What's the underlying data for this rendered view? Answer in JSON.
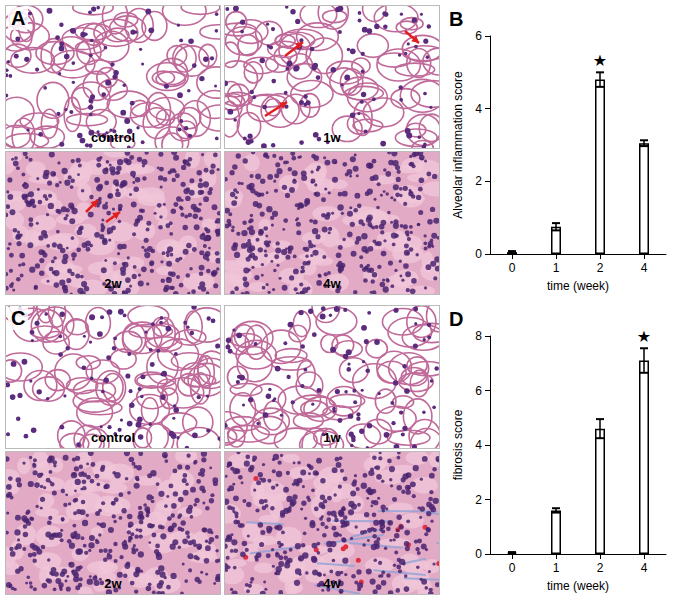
{
  "panels": [
    {
      "label": "A",
      "images": [
        "control",
        "1w",
        "2w",
        "4w"
      ]
    },
    {
      "label": "C",
      "images": [
        "control",
        "1w",
        "2w",
        "4w"
      ]
    }
  ],
  "chart_data": [
    {
      "panel": "B",
      "type": "bar",
      "ylabel": "Alveolar inflammation score",
      "xlabel": "time (week)",
      "categories": [
        "0",
        "1",
        "2",
        "4"
      ],
      "values": [
        0.05,
        0.75,
        4.8,
        3.05
      ],
      "errors": [
        0.03,
        0.1,
        0.2,
        0.08
      ],
      "color": "#ffffff",
      "ylim": [
        0,
        6
      ],
      "yticks": [
        0,
        2,
        4,
        6
      ],
      "grid": false,
      "annotations": [
        {
          "category": "2",
          "text": "★"
        }
      ]
    },
    {
      "panel": "D",
      "type": "bar",
      "ylabel": "fibrosis score",
      "xlabel": "time (week)",
      "categories": [
        "0",
        "1",
        "2",
        "4"
      ],
      "values": [
        0.05,
        1.6,
        4.6,
        7.1
      ],
      "errors": [
        0.02,
        0.08,
        0.35,
        0.45
      ],
      "color": "#ffffff",
      "ylim": [
        0,
        8
      ],
      "yticks": [
        0,
        2,
        4,
        6,
        8
      ],
      "grid": false,
      "annotations": [
        {
          "category": "4",
          "text": "★"
        }
      ]
    }
  ]
}
